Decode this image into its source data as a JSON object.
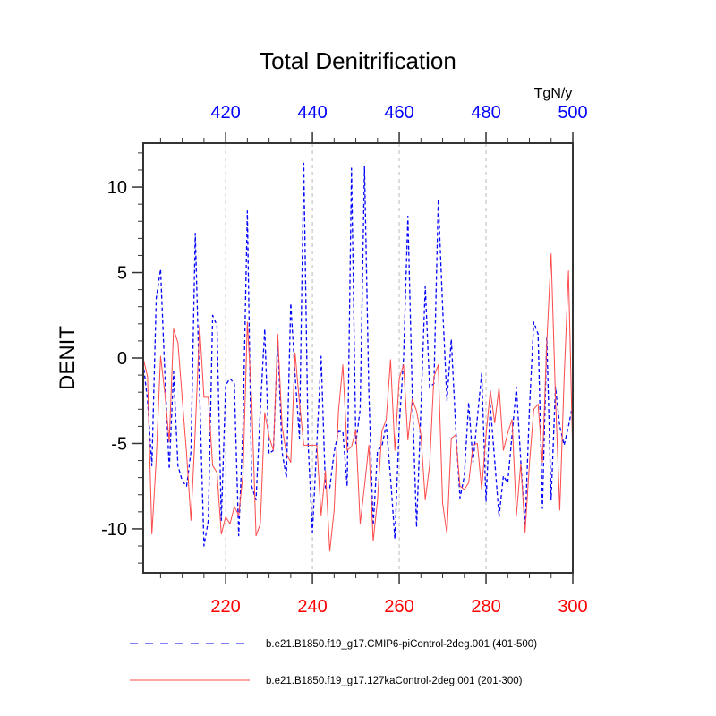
{
  "chart_data": {
    "type": "line",
    "title": "Total Denitrification",
    "ylabel": "DENIT",
    "units": "TgN/y",
    "xlabel": "",
    "ylim": [
      -12.57,
      12.57
    ],
    "y_ticks": [
      -10,
      -5,
      0,
      5,
      10
    ],
    "y_tick_labels": [
      "-10",
      "-5",
      "0",
      "5",
      "10"
    ],
    "y_minor_step": 1,
    "bottom_axis": {
      "xlim": [
        201,
        300
      ],
      "ticks": [
        220,
        240,
        260,
        280,
        300
      ],
      "tick_labels": [
        "220",
        "240",
        "260",
        "280",
        "300"
      ],
      "minor_step": 5,
      "color": "#ff0000"
    },
    "top_axis": {
      "xlim": [
        401,
        500
      ],
      "ticks": [
        420,
        440,
        460,
        480,
        500
      ],
      "tick_labels": [
        "420",
        "440",
        "460",
        "480",
        "500"
      ],
      "minor_step": 5,
      "color": "#0000ff"
    },
    "grid": {
      "vertical_at": [
        220,
        240,
        260,
        280
      ],
      "style": "dashed",
      "color": "#bbbbbb"
    },
    "legend_placement": "bottom",
    "series": [
      {
        "name": "b.e21.B1850.f19_g17.CMIP6-piControl-2deg.001 (401-500)",
        "axis": "top",
        "color": "#0000ff",
        "style": "dashed",
        "x_start": 401,
        "values": [
          -0.3,
          -2.5,
          -6.3,
          3.5,
          5.2,
          -1,
          -6.5,
          -0.8,
          -6.3,
          -7.2,
          -7.5,
          -5.5,
          7.3,
          -2,
          -11,
          -9.5,
          2.5,
          1.9,
          -9.5,
          -1.6,
          -1.2,
          -1.5,
          -10.4,
          -4,
          8.6,
          -7.5,
          -8.3,
          -3,
          1.7,
          -5.6,
          -5.4,
          1.2,
          -5.5,
          -7,
          3.2,
          -1,
          -4.7,
          11.4,
          -5,
          -10.2,
          -5,
          0.1,
          -7.6,
          -7.6,
          -5.5,
          -4.3,
          -4.3,
          -7.5,
          11.1,
          -5,
          -3,
          11.2,
          -2,
          -9.8,
          -5.4,
          -5.2,
          -3.9,
          -7,
          -10.6,
          -4,
          0,
          8.3,
          -2,
          -9.9,
          -3,
          4.2,
          -1.7,
          -1.5,
          9.3,
          3,
          -2.5,
          1.1,
          -4,
          -8.2,
          -6.9,
          -2.6,
          -6.1,
          -3.5,
          -0.9,
          -8.4,
          -2.8,
          -6,
          -9.3,
          -6.9,
          -7.3,
          -4.5,
          -1.7,
          -6,
          -9.9,
          -3,
          2.1,
          1.4,
          -8.8,
          1.2,
          -8.3,
          -1.7,
          -4,
          -5.1,
          -4,
          -2.7
        ]
      },
      {
        "name": "b.e21.B1850.f19_g17.127kaControl-2deg.001 (201-300)",
        "axis": "bottom",
        "color": "#ff4a4a",
        "style": "solid",
        "x_start": 201,
        "values": [
          0,
          -1.1,
          -10.3,
          -5.9,
          0.1,
          -2.1,
          -4.9,
          1.7,
          0.9,
          -2.4,
          -5.6,
          -9.5,
          -4.2,
          1.9,
          -2.3,
          -2.3,
          -6.3,
          -6.7,
          -10.3,
          -9.3,
          -9.7,
          -8.7,
          -9.2,
          -6.8,
          2.1,
          -2.4,
          -10.4,
          -9.7,
          -3.2,
          -4.6,
          -5.4,
          1.4,
          -4,
          -5.6,
          -6.1,
          0.3,
          -2.6,
          -5.1,
          -5.1,
          -5.1,
          -5.1,
          -9.2,
          -6.6,
          -11.3,
          -8.9,
          -3.1,
          -0.4,
          -5.4,
          -5.2,
          -4.2,
          -9.7,
          -7.5,
          -5.1,
          -10.7,
          -8.3,
          -4.3,
          -3.6,
          -0.1,
          -5.4,
          -1.2,
          -0.4,
          -4.8,
          -2.4,
          -3.1,
          -4.5,
          -8.3,
          -6.3,
          -1.1,
          -0.4,
          -8.5,
          -10.3,
          -4.7,
          -4.5,
          -7.5,
          -7.7,
          -7.3,
          -5.1,
          -5,
          -7.7,
          -4.5,
          -1.9,
          -3.8,
          -1.7,
          -5.4,
          -4.4,
          -3.6,
          -9.2,
          -6.2,
          -10.2,
          -6.2,
          -3,
          -2.7,
          -6.1,
          0.9,
          6.1,
          -2.3,
          -8.9,
          -1.2,
          5.1,
          -5.9
        ]
      }
    ]
  }
}
